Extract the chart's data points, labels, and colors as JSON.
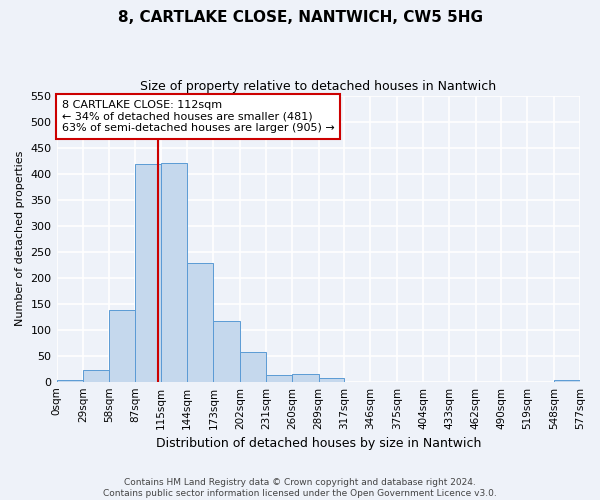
{
  "title": "8, CARTLAKE CLOSE, NANTWICH, CW5 5HG",
  "subtitle": "Size of property relative to detached houses in Nantwich",
  "xlabel": "Distribution of detached houses by size in Nantwich",
  "ylabel": "Number of detached properties",
  "bin_edges": [
    0,
    29,
    58,
    87,
    115,
    144,
    173,
    202,
    231,
    260,
    289,
    317,
    346,
    375,
    404,
    433,
    462,
    490,
    519,
    548,
    577
  ],
  "bar_heights": [
    3,
    22,
    137,
    418,
    420,
    228,
    117,
    57,
    13,
    15,
    7,
    0,
    0,
    0,
    0,
    0,
    0,
    0,
    0,
    3
  ],
  "bar_color": "#c5d8ed",
  "bar_edge_color": "#5b9bd5",
  "property_size": 112,
  "vline_color": "#cc0000",
  "annotation_line1": "8 CARTLAKE CLOSE: 112sqm",
  "annotation_line2": "← 34% of detached houses are smaller (481)",
  "annotation_line3": "63% of semi-detached houses are larger (905) →",
  "annotation_box_color": "#ffffff",
  "annotation_box_edge_color": "#cc0000",
  "ylim": [
    0,
    550
  ],
  "yticks": [
    0,
    50,
    100,
    150,
    200,
    250,
    300,
    350,
    400,
    450,
    500,
    550
  ],
  "xtick_labels": [
    "0sqm",
    "29sqm",
    "58sqm",
    "87sqm",
    "115sqm",
    "144sqm",
    "173sqm",
    "202sqm",
    "231sqm",
    "260sqm",
    "289sqm",
    "317sqm",
    "346sqm",
    "375sqm",
    "404sqm",
    "433sqm",
    "462sqm",
    "490sqm",
    "519sqm",
    "548sqm",
    "577sqm"
  ],
  "footnote_line1": "Contains HM Land Registry data © Crown copyright and database right 2024.",
  "footnote_line2": "Contains public sector information licensed under the Open Government Licence v3.0.",
  "background_color": "#eef2f9",
  "grid_color": "#ffffff",
  "title_fontsize": 11,
  "subtitle_fontsize": 9,
  "ylabel_fontsize": 8,
  "xlabel_fontsize": 9,
  "ytick_fontsize": 8,
  "xtick_fontsize": 7.5,
  "footnote_fontsize": 6.5
}
